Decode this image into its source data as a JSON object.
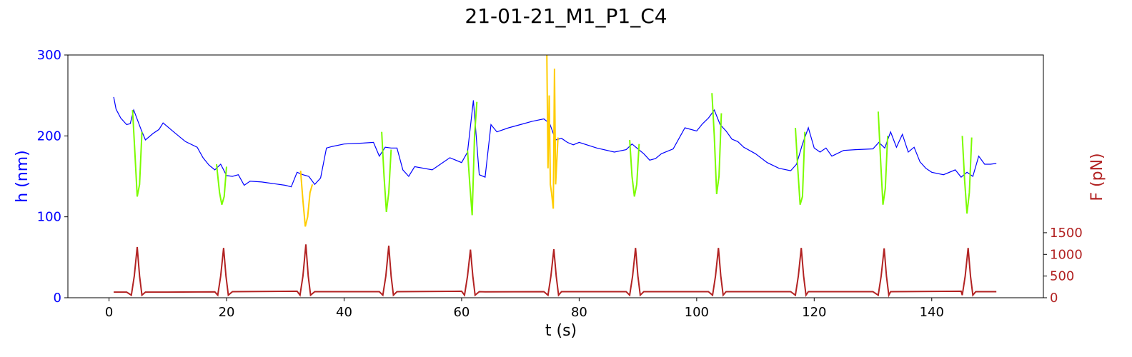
{
  "chart_data": {
    "type": "line",
    "title": "21-01-21_M1_P1_C4",
    "xlabel": "t (s)",
    "ylabel_left": "h (nm)",
    "ylabel_right": "F (pN)",
    "xlim": [
      -7,
      159
    ],
    "ylim_left": [
      0,
      300
    ],
    "ylim_right": [
      0,
      5600
    ],
    "x_ticks": [
      0,
      20,
      40,
      60,
      80,
      100,
      120,
      140
    ],
    "y_left_ticks": [
      0,
      100,
      200,
      300
    ],
    "y_right_ticks": [
      0,
      500,
      1000,
      1500
    ],
    "grid": false,
    "colors": {
      "height": "#0000ff",
      "force": "#b22222",
      "compression": "#7cfc00",
      "highlight": "#ffcc00",
      "left_axis": "#0000ff",
      "right_axis": "#b22222"
    },
    "series": [
      {
        "kind": "height",
        "x": [
          0.8,
          1.2,
          2.0,
          3.0,
          3.6,
          4.2,
          5.5,
          6.2,
          7.5,
          8.5,
          9.2,
          11,
          13,
          15,
          16,
          17,
          18,
          19,
          20,
          21,
          22,
          23,
          24,
          26,
          28,
          30,
          31,
          32,
          33,
          34,
          35,
          36,
          37,
          38,
          40,
          43,
          45,
          46,
          47,
          48,
          49,
          50,
          51,
          52,
          55,
          58,
          60,
          61,
          62,
          63,
          64,
          65,
          66,
          68,
          70,
          72,
          74,
          75,
          76,
          77,
          78,
          79,
          80,
          83,
          86,
          88,
          89,
          90,
          91,
          92,
          93,
          94,
          96,
          98,
          100,
          101,
          102,
          103,
          104,
          105,
          106,
          107,
          108,
          110,
          112,
          114,
          116,
          117,
          118,
          119,
          120,
          121,
          122,
          123,
          125,
          127,
          130,
          131,
          132,
          133,
          134,
          135,
          136,
          137,
          138,
          139,
          140,
          142,
          144,
          145,
          146,
          147,
          148,
          149,
          150,
          151
        ],
        "y": [
          248,
          233,
          222,
          214,
          215,
          232,
          207,
          195,
          203,
          208,
          216,
          205,
          193,
          186,
          173,
          164,
          158,
          165,
          151,
          150,
          152,
          139,
          144,
          143,
          141,
          139,
          137,
          155,
          152,
          150,
          140,
          148,
          185,
          187,
          190,
          191,
          192,
          175,
          186,
          185,
          185,
          158,
          150,
          162,
          158,
          173,
          167,
          180,
          244,
          152,
          149,
          214,
          205,
          210,
          214,
          218,
          221,
          215,
          195,
          197,
          192,
          189,
          192,
          185,
          180,
          183,
          190,
          184,
          178,
          170,
          172,
          178,
          184,
          210,
          206,
          215,
          222,
          232,
          214,
          206,
          196,
          193,
          186,
          178,
          167,
          160,
          157,
          165,
          190,
          210,
          185,
          180,
          185,
          175,
          182,
          183,
          184,
          192,
          185,
          205,
          186,
          202,
          180,
          186,
          168,
          160,
          155,
          152,
          158,
          149,
          155,
          150,
          175,
          165,
          165,
          166
        ]
      },
      {
        "kind": "compression",
        "segments": [
          {
            "x": [
              4.0,
              4.4,
              4.8,
              5.2,
              5.6
            ],
            "y": [
              232,
              180,
              125,
              140,
              205
            ]
          },
          {
            "x": [
              18.3,
              18.8,
              19.2,
              19.6,
              20.0
            ],
            "y": [
              165,
              130,
              115,
              125,
              162
            ]
          },
          {
            "x": [
              46.4,
              46.8,
              47.2,
              47.6,
              48.0
            ],
            "y": [
              205,
              150,
              106,
              130,
              183
            ]
          },
          {
            "x": [
              61.0,
              61.4,
              61.8,
              62.2,
              62.6
            ],
            "y": [
              182,
              140,
              102,
              200,
              242
            ]
          },
          {
            "x": [
              88.6,
              89.0,
              89.4,
              89.8,
              90.2
            ],
            "y": [
              195,
              150,
              125,
              140,
              190
            ]
          },
          {
            "x": [
              102.6,
              103.0,
              103.4,
              103.8,
              104.2
            ],
            "y": [
              253,
              200,
              128,
              150,
              228
            ]
          },
          {
            "x": [
              116.8,
              117.2,
              117.6,
              118.0,
              118.4
            ],
            "y": [
              210,
              160,
              115,
              125,
              205
            ]
          },
          {
            "x": [
              130.9,
              131.3,
              131.7,
              132.1,
              132.5
            ],
            "y": [
              230,
              170,
              115,
              135,
              200
            ]
          },
          {
            "x": [
              145.2,
              145.6,
              146.0,
              146.4,
              146.8
            ],
            "y": [
              200,
              145,
              104,
              130,
              198
            ]
          }
        ]
      },
      {
        "kind": "highlight",
        "segments": [
          {
            "x": [
              32.6,
              33.0,
              33.4,
              33.8,
              34.2,
              34.6
            ],
            "y": [
              157,
              120,
              88,
              100,
              130,
              140
            ]
          },
          {
            "x": [
              74.5,
              74.7,
              74.9,
              75.1,
              75.3,
              75.6,
              75.8,
              76.0,
              76.4
            ],
            "y": [
              300,
              160,
              250,
              140,
              130,
              110,
              283,
              140,
              198
            ]
          }
        ]
      },
      {
        "kind": "force",
        "x": [
          0.8,
          3.0,
          3.8,
          4.3,
          4.8,
          5.2,
          5.6,
          6.2,
          10,
          18,
          18.5,
          19.0,
          19.5,
          19.9,
          20.3,
          21,
          32,
          32.5,
          33.0,
          33.5,
          33.9,
          34.3,
          35,
          46,
          46.6,
          47.1,
          47.6,
          48.0,
          48.4,
          49,
          60,
          60.5,
          61.0,
          61.5,
          61.9,
          62.3,
          63,
          64,
          74,
          74.7,
          75.2,
          75.7,
          76.1,
          76.5,
          77,
          88,
          88.6,
          89.1,
          89.6,
          90.0,
          90.4,
          91,
          102,
          102.7,
          103.2,
          103.7,
          104.1,
          104.5,
          105,
          116,
          116.8,
          117.3,
          117.8,
          118.2,
          118.6,
          119,
          130,
          130.9,
          131.4,
          131.9,
          132.3,
          132.7,
          133,
          145,
          145.2,
          145.7,
          146.2,
          146.6,
          147.0,
          147.5,
          151
        ],
        "y": [
          130,
          130,
          60,
          500,
          1170,
          500,
          60,
          130,
          130,
          135,
          60,
          500,
          1150,
          500,
          60,
          140,
          150,
          60,
          500,
          1230,
          500,
          60,
          140,
          140,
          60,
          500,
          1200,
          500,
          60,
          140,
          150,
          60,
          500,
          1110,
          500,
          60,
          140,
          135,
          140,
          60,
          500,
          1120,
          500,
          60,
          140,
          140,
          60,
          500,
          1150,
          500,
          60,
          140,
          140,
          60,
          500,
          1150,
          500,
          60,
          140,
          140,
          60,
          500,
          1150,
          500,
          60,
          140,
          140,
          60,
          500,
          1140,
          500,
          60,
          140,
          150,
          60,
          500,
          1150,
          500,
          60,
          140,
          140
        ]
      }
    ]
  }
}
